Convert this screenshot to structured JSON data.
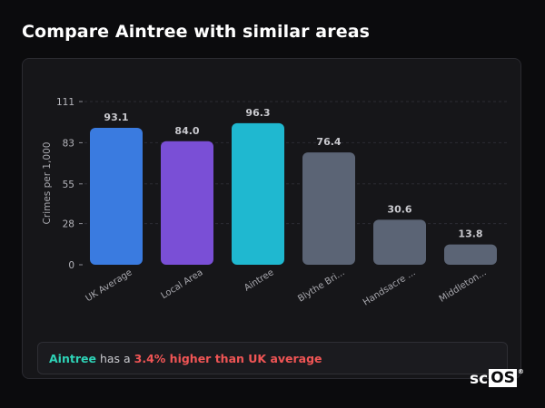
{
  "header": {
    "title": "Compare Aintree with similar areas"
  },
  "summary": {
    "area": "Aintree",
    "middle": "has a",
    "difference": "3.4% higher than UK average"
  },
  "logo": {
    "text_plain": "sc",
    "text_boxed": "OS",
    "mark": "®"
  },
  "chart_data": {
    "type": "bar",
    "title": "",
    "xlabel": "",
    "ylabel": "Crimes per 1,000",
    "ylim": [
      0,
      111
    ],
    "yticks": [
      0,
      28,
      55,
      83,
      111
    ],
    "grid": true,
    "categories": [
      "UK Average",
      "Local Area",
      "Aintree",
      "Blythe Bri...",
      "Handsacre ...",
      "Middleton..."
    ],
    "values": [
      93.1,
      84.0,
      96.3,
      76.4,
      30.6,
      13.8
    ],
    "value_labels": [
      "93.1",
      "84.0",
      "96.3",
      "76.4",
      "30.6",
      "13.8"
    ],
    "colors": [
      "#3a7be0",
      "#7a4fd6",
      "#1fb8d0",
      "#5b6475",
      "#5b6475",
      "#5b6475"
    ]
  }
}
